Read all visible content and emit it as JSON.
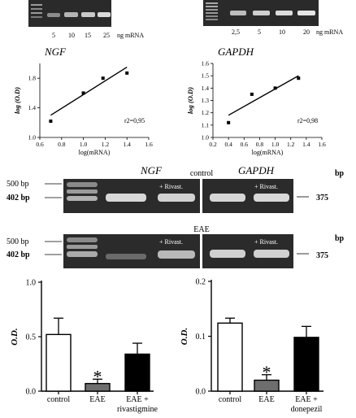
{
  "gel_top_left": {
    "lanes": [
      "5",
      "10",
      "15",
      "25"
    ],
    "unit": "ng mRNA"
  },
  "gel_top_right": {
    "lanes": [
      "2,5",
      "5",
      "10",
      "20"
    ],
    "unit": "ng mRNA"
  },
  "middle_gels": {
    "ngf_label": "NGF",
    "gapdh_label": "GAPDH",
    "control_label": "control",
    "eae_label": "EAE",
    "marker_500": "500 bp",
    "marker_402": "402 bp",
    "size_375": "375",
    "bp_label": "bp",
    "rivast_label": "+ Rivast."
  },
  "chart_data": [
    {
      "type": "scatter",
      "title": "NGF",
      "xlabel": "log(mRNA)",
      "ylabel": "log (O.D)",
      "xlim": [
        0.6,
        1.6
      ],
      "ylim": [
        1.0,
        2.0
      ],
      "xticks": [
        "0.6",
        "0.8",
        "1.0",
        "1.2",
        "1.4",
        "1.6"
      ],
      "yticks": [
        "1.0",
        "1.4",
        "1.8"
      ],
      "points": [
        [
          0.7,
          1.22
        ],
        [
          1.0,
          1.6
        ],
        [
          1.18,
          1.8
        ],
        [
          1.4,
          1.87
        ]
      ],
      "fit_line": [
        [
          0.7,
          1.3
        ],
        [
          1.4,
          1.95
        ]
      ],
      "r2": "r2=0,95"
    },
    {
      "type": "scatter",
      "title": "GAPDH",
      "xlabel": "log(mRNA)",
      "ylabel": "log (O.D)",
      "xlim": [
        0.2,
        1.6
      ],
      "ylim": [
        1.0,
        1.6
      ],
      "xticks": [
        "0.2",
        "0.4",
        "0.6",
        "0.8",
        "1.0",
        "1.2",
        "1.4",
        "1.6"
      ],
      "yticks": [
        "1.0",
        "1.1",
        "1.2",
        "1.3",
        "1.4",
        "1.5",
        "1.6"
      ],
      "points": [
        [
          0.4,
          1.12
        ],
        [
          0.7,
          1.35
        ],
        [
          1.0,
          1.4
        ],
        [
          1.3,
          1.48
        ]
      ],
      "fit_line": [
        [
          0.4,
          1.18
        ],
        [
          1.3,
          1.5
        ]
      ],
      "r2": "r2=0,98"
    },
    {
      "type": "bar",
      "ylabel": "O.D.",
      "ylim": [
        0,
        1.0
      ],
      "yticks": [
        "0.0",
        "0.5",
        "1.0"
      ],
      "categories": [
        "control",
        "EAE",
        "EAE +\nrivastigmine"
      ],
      "values": [
        0.52,
        0.07,
        0.34
      ],
      "errors": [
        0.15,
        0.04,
        0.1
      ],
      "colors": [
        "#ffffff",
        "#6e6e6e",
        "#000000"
      ],
      "annotation": "*"
    },
    {
      "type": "bar",
      "ylabel": "O.D.",
      "ylim": [
        0,
        0.2
      ],
      "yticks": [
        "0.0",
        "0.1",
        "0.2"
      ],
      "categories": [
        "control",
        "EAE",
        "EAE +\ndonepezil"
      ],
      "values": [
        0.124,
        0.02,
        0.098
      ],
      "errors": [
        0.009,
        0.01,
        0.02
      ],
      "colors": [
        "#ffffff",
        "#6e6e6e",
        "#000000"
      ],
      "annotation": "*"
    }
  ]
}
